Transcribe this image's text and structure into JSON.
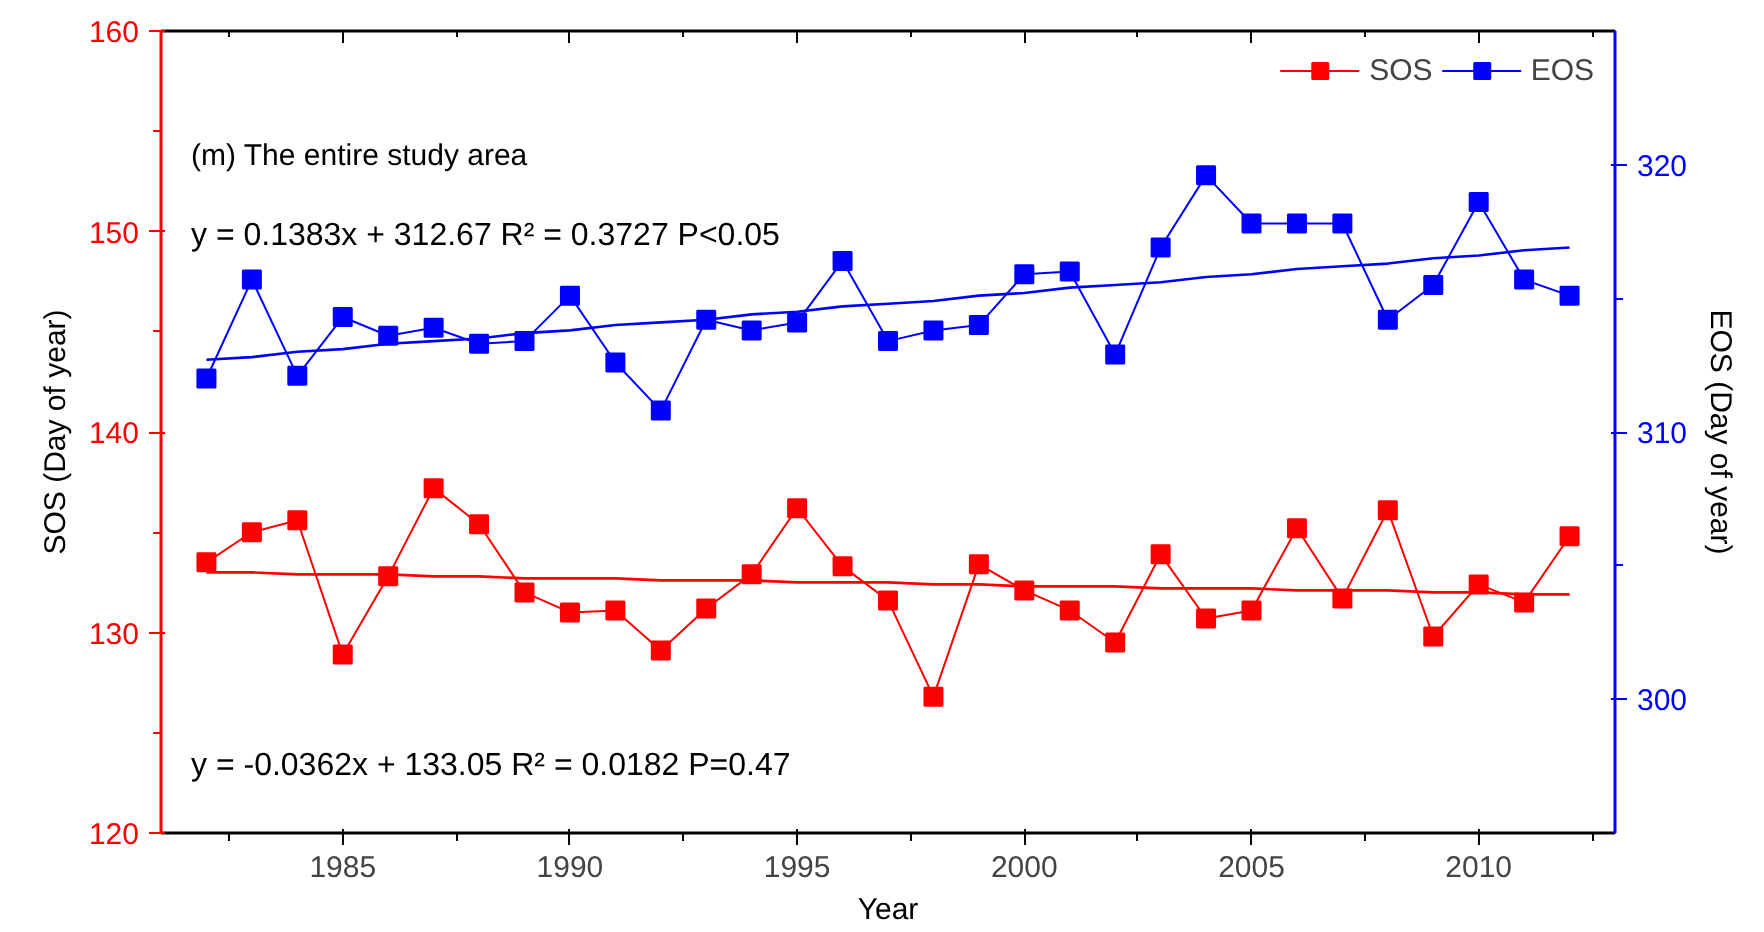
{
  "chart_data": {
    "type": "line",
    "xlabel": "Year",
    "ylabel": "SOS (Day of year)",
    "y2label": "EOS (Day of year)",
    "x": [
      1982,
      1983,
      1984,
      1985,
      1986,
      1987,
      1988,
      1989,
      1990,
      1991,
      1992,
      1993,
      1994,
      1995,
      1996,
      1997,
      1998,
      1999,
      2000,
      2001,
      2002,
      2003,
      2004,
      2005,
      2006,
      2007,
      2008,
      2009,
      2010,
      2011,
      2012
    ],
    "series": [
      {
        "name": "SOS",
        "color": "#ff0000",
        "marker": "square",
        "values": [
          133.5,
          135.0,
          135.6,
          128.9,
          132.8,
          137.2,
          135.4,
          132.0,
          131.0,
          131.1,
          129.1,
          131.2,
          132.9,
          136.2,
          133.3,
          131.6,
          126.8,
          133.4,
          132.1,
          131.1,
          129.5,
          133.9,
          130.7,
          131.1,
          135.2,
          131.7,
          136.1,
          129.8,
          132.4,
          131.5,
          134.8
        ]
      },
      {
        "name": "EOS",
        "color": "#0000ff",
        "marker": "square",
        "axis": "y2",
        "values": [
          312.0,
          315.7,
          312.1,
          314.3,
          313.6,
          313.9,
          313.3,
          313.4,
          315.1,
          312.6,
          310.8,
          314.2,
          313.8,
          314.1,
          316.4,
          313.4,
          313.8,
          314.0,
          315.9,
          316.0,
          312.9,
          316.9,
          319.6,
          317.8,
          317.8,
          317.8,
          314.2,
          315.5,
          318.6,
          315.7,
          315.1
        ]
      },
      {
        "type": "line",
        "color": "#ff0000",
        "marker": "none",
        "values": [
          133.0,
          133.0,
          132.9,
          132.9,
          132.9,
          132.8,
          132.8,
          132.7,
          132.7,
          132.7,
          132.6,
          132.6,
          132.6,
          132.5,
          132.5,
          132.5,
          132.4,
          132.4,
          132.3,
          132.3,
          132.3,
          132.2,
          132.2,
          132.2,
          132.1,
          132.1,
          132.1,
          132.0,
          132.0,
          131.9,
          131.9
        ]
      },
      {
        "type": "line",
        "color": "#0000ff",
        "marker": "none",
        "axis": "y2",
        "values": [
          312.7,
          312.8,
          313.0,
          313.1,
          313.3,
          313.4,
          313.5,
          313.7,
          313.8,
          314.0,
          314.1,
          314.2,
          314.4,
          314.5,
          314.7,
          314.8,
          314.9,
          315.1,
          315.2,
          315.4,
          315.5,
          315.6,
          315.8,
          315.9,
          316.1,
          316.2,
          316.3,
          316.5,
          316.6,
          316.8,
          316.9
        ]
      }
    ],
    "xlim": [
      1981,
      2013
    ],
    "xticks": [
      {
        "value": 1982.5,
        "label": null
      },
      1985,
      {
        "value": 1987.5,
        "label": null
      },
      1990,
      {
        "value": 1992.5,
        "label": null
      },
      1995,
      {
        "value": 1997.5,
        "label": null
      },
      2000,
      {
        "value": 2002.5,
        "label": null
      },
      2005,
      {
        "value": 2007.5,
        "label": null
      },
      2010,
      {
        "value": 2012.5,
        "label": null
      }
    ],
    "ylim": [
      120,
      160
    ],
    "yticks": [
      120,
      {
        "value": 125,
        "label": null
      },
      130,
      {
        "value": 135,
        "label": null
      },
      140,
      {
        "value": 145,
        "label": null
      },
      150,
      {
        "value": 155,
        "label": null
      },
      160
    ],
    "y2lim": [
      295,
      325
    ],
    "y2ticks": [
      300,
      {
        "value": 305,
        "label": null
      },
      310,
      {
        "value": 315,
        "label": null
      },
      320
    ],
    "annotations": [
      "(m) The entire study area",
      "y = 0.1383x + 312.67 R² = 0.3727  P<0.05",
      "y = -0.0362x + 133.05  R² = 0.0182 P=0.47"
    ],
    "legend": "top right",
    "grid": false,
    "line_style": "solid"
  }
}
